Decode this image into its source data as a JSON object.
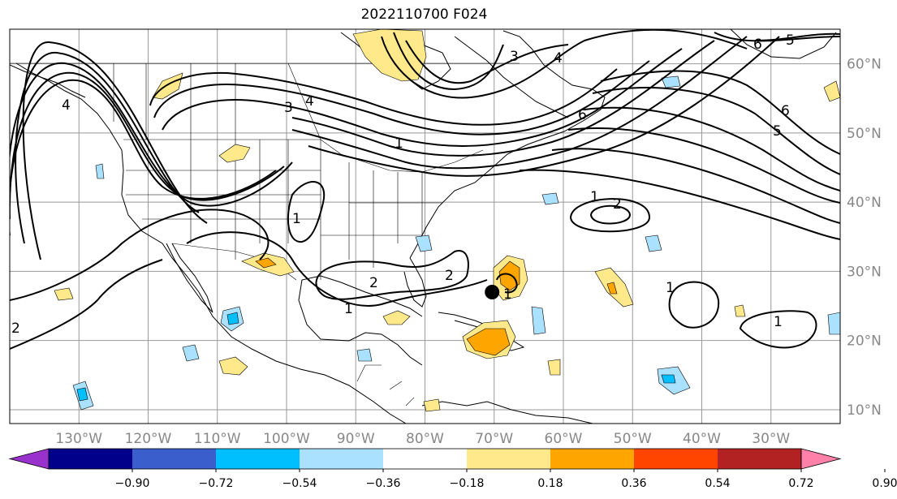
{
  "title": "2022110700 F024",
  "map": {
    "lon_ticks": [
      {
        "lon": -130,
        "label": "130°W"
      },
      {
        "lon": -120,
        "label": "120°W"
      },
      {
        "lon": -110,
        "label": "110°W"
      },
      {
        "lon": -100,
        "label": "100°W"
      },
      {
        "lon": -90,
        "label": "90°W"
      },
      {
        "lon": -80,
        "label": "80°W"
      },
      {
        "lon": -70,
        "label": "70°W"
      },
      {
        "lon": -60,
        "label": "60°W"
      },
      {
        "lon": -50,
        "label": "50°W"
      },
      {
        "lon": -40,
        "label": "40°W"
      },
      {
        "lon": -30,
        "label": "30°W"
      }
    ],
    "lat_ticks": [
      {
        "lat": 10,
        "label": "10°N"
      },
      {
        "lat": 20,
        "label": "20°N"
      },
      {
        "lat": 30,
        "label": "30°N"
      },
      {
        "lat": 40,
        "label": "40°N"
      },
      {
        "lat": 50,
        "label": "50°N"
      },
      {
        "lat": 60,
        "label": "60°N"
      }
    ],
    "extent": {
      "lon_min": -140,
      "lon_max": -20,
      "lat_min": 8,
      "lat_max": 65
    },
    "marker": {
      "lon": -70.3,
      "lat": 27.0,
      "name": "storm-center"
    }
  },
  "colorbar": {
    "colors": [
      "#9932cc",
      "#00008b",
      "#3a5fcd",
      "#00bfff",
      "#aae1ff",
      "#ffffff",
      "#ffe98a",
      "#ffa500",
      "#ff4500",
      "#b22222",
      "#ff80a8"
    ],
    "labels": [
      "−0.90",
      "−0.72",
      "−0.54",
      "−0.36",
      "−0.18",
      "0.18",
      "0.36",
      "0.54",
      "0.72",
      "0.90"
    ]
  }
}
